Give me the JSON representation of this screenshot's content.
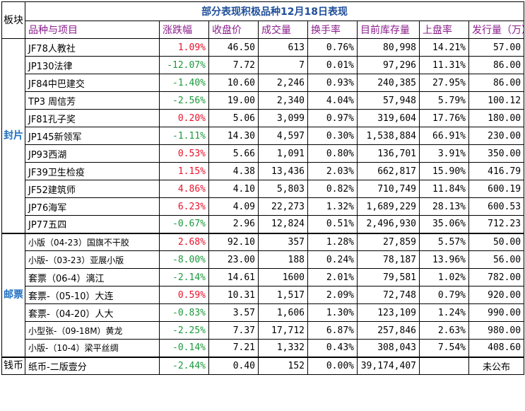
{
  "title": "部分表现积极品种12月18日表现",
  "board_label": "板块",
  "headers": [
    "品种与项目",
    "涨跌幅",
    "收盘价",
    "成交量",
    "换手率",
    "目前库存量",
    "上盘率",
    "发行量（万）"
  ],
  "sections": [
    {
      "label": "封片",
      "rows": [
        {
          "name": "JF78人教社",
          "change": "1.09%",
          "dir": "up",
          "close": "46.50",
          "volume": "613",
          "turnover": "0.76%",
          "stock": "80,998",
          "rate": "14.21%",
          "issue": "57.00"
        },
        {
          "name": "JP130法律",
          "change": "-12.07%",
          "dir": "down",
          "close": "7.72",
          "volume": "7",
          "turnover": "0.01%",
          "stock": "97,296",
          "rate": "11.31%",
          "issue": "86.00"
        },
        {
          "name": "JF84中巴建交",
          "change": "-1.40%",
          "dir": "down",
          "close": "10.60",
          "volume": "2,246",
          "turnover": "0.93%",
          "stock": "240,385",
          "rate": "27.95%",
          "issue": "86.00"
        },
        {
          "name": "TP3 周信芳",
          "change": "-2.56%",
          "dir": "down",
          "close": "19.00",
          "volume": "2,340",
          "turnover": "4.04%",
          "stock": "57,948",
          "rate": "5.79%",
          "issue": "100.12"
        },
        {
          "name": "JF81孔子奖",
          "change": "0.20%",
          "dir": "up",
          "close": "5.06",
          "volume": "3,099",
          "turnover": "0.97%",
          "stock": "319,604",
          "rate": "17.76%",
          "issue": "180.00"
        },
        {
          "name": "JP145新领军",
          "change": "-1.11%",
          "dir": "down",
          "close": "14.30",
          "volume": "4,597",
          "turnover": "0.30%",
          "stock": "1,538,884",
          "rate": "66.91%",
          "issue": "230.00"
        },
        {
          "name": "JP93西湖",
          "change": "0.53%",
          "dir": "up",
          "close": "5.66",
          "volume": "1,091",
          "turnover": "0.80%",
          "stock": "136,701",
          "rate": "3.91%",
          "issue": "350.00"
        },
        {
          "name": "JF39卫生检疫",
          "change": "1.15%",
          "dir": "up",
          "close": "4.38",
          "volume": "13,436",
          "turnover": "2.03%",
          "stock": "662,817",
          "rate": "15.90%",
          "issue": "416.79"
        },
        {
          "name": "JF52建筑师",
          "change": "4.86%",
          "dir": "up",
          "close": "4.10",
          "volume": "5,803",
          "turnover": "0.82%",
          "stock": "710,749",
          "rate": "11.84%",
          "issue": "600.19"
        },
        {
          "name": "JP76海军",
          "change": "6.23%",
          "dir": "up",
          "close": "4.09",
          "volume": "22,273",
          "turnover": "1.32%",
          "stock": "1,689,229",
          "rate": "28.13%",
          "issue": "600.53"
        },
        {
          "name": "JP77五四",
          "change": "-0.67%",
          "dir": "down",
          "close": "2.96",
          "volume": "12,824",
          "turnover": "0.51%",
          "stock": "2,496,930",
          "rate": "35.06%",
          "issue": "712.23"
        }
      ]
    },
    {
      "label": "邮票",
      "rows": [
        {
          "name": "小版（04-23）国旗不干胶",
          "change": "2.68%",
          "dir": "up",
          "close": "92.10",
          "volume": "357",
          "turnover": "1.28%",
          "stock": "27,859",
          "rate": "5.57%",
          "issue": "50.00",
          "small": true
        },
        {
          "name": "小版-（03-23）亚展小版",
          "change": "-8.00%",
          "dir": "down",
          "close": "23.00",
          "volume": "188",
          "turnover": "0.24%",
          "stock": "78,187",
          "rate": "13.96%",
          "issue": "56.00",
          "small": true
        },
        {
          "name": "套票（06-4）漓江",
          "change": "-2.14%",
          "dir": "down",
          "close": "14.61",
          "volume": "1600",
          "turnover": "2.01%",
          "stock": "79,581",
          "rate": "1.02%",
          "issue": "782.00"
        },
        {
          "name": "套票-（05-10）大连",
          "change": "0.59%",
          "dir": "up",
          "close": "10.31",
          "volume": "1,517",
          "turnover": "2.09%",
          "stock": "72,748",
          "rate": "0.79%",
          "issue": "920.00"
        },
        {
          "name": "套票-（04-20）人大",
          "change": "-0.83%",
          "dir": "down",
          "close": "3.57",
          "volume": "1,606",
          "turnover": "1.30%",
          "stock": "123,109",
          "rate": "1.24%",
          "issue": "990.00"
        },
        {
          "name": "小型张-（09-18M）黄龙",
          "change": "-2.25%",
          "dir": "down",
          "close": "7.37",
          "volume": "17,712",
          "turnover": "6.87%",
          "stock": "257,846",
          "rate": "2.63%",
          "issue": "980.00",
          "small": true
        },
        {
          "name": "小版-（10-4）梁平丝绸",
          "change": "-0.14%",
          "dir": "down",
          "close": "7.21",
          "volume": "1,332",
          "turnover": "0.43%",
          "stock": "308,043",
          "rate": "7.54%",
          "issue": "408.60",
          "small": true
        }
      ]
    },
    {
      "label": "钱币",
      "rows": [
        {
          "name": "纸币-二版壹分",
          "change": "-2.44%",
          "dir": "down",
          "close": "0.40",
          "volume": "152",
          "turnover": "0.00%",
          "stock": "39,174,407",
          "rate": "",
          "issue": "未公布"
        }
      ]
    }
  ],
  "colors": {
    "up": "#e8122b",
    "down": "#1a9a3c",
    "title": "#1f4e9a",
    "header": "#8b1f8b",
    "section_label": "#1f6fc0"
  }
}
